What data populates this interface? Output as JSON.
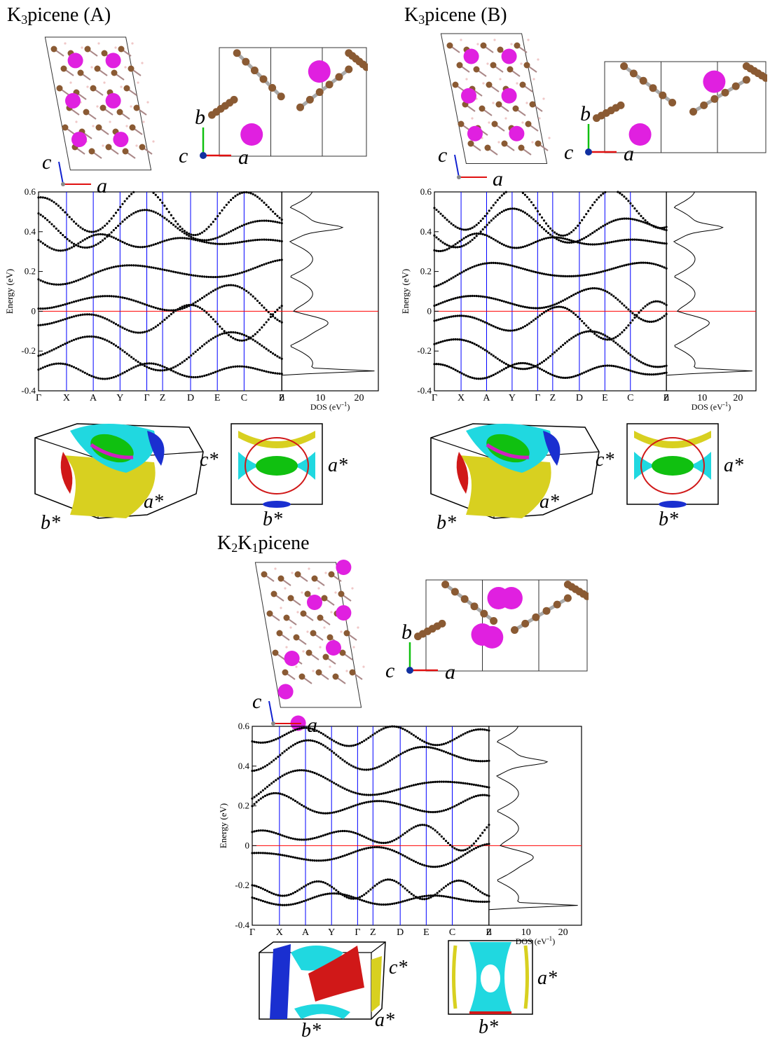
{
  "panels": [
    {
      "title": {
        "prefix": "K",
        "sub": "3",
        "rest": "picene (A)"
      },
      "axes_left": [
        "c",
        "a"
      ],
      "axes_right": [
        "b",
        "c",
        "a"
      ],
      "bz_left": [
        "c*",
        "b*",
        "a*"
      ],
      "bz_right": [
        "a*",
        "b*"
      ],
      "kpath": [
        "Γ",
        "X",
        "A",
        "Y",
        "Γ",
        "Z",
        "D",
        "E",
        "C",
        "Z"
      ],
      "energy_label": "Energy (eV)",
      "dos_label": "DOS (eV",
      "dos_sup": "-1",
      "dos_unit_close": ")",
      "y_ticks": [
        "0.6",
        "0.4",
        "0.2",
        "0",
        "-0.2",
        "-0.4"
      ],
      "dos_ticks": [
        "0",
        "10",
        "20"
      ]
    },
    {
      "title": {
        "prefix": "K",
        "sub": "3",
        "rest": "picene (B)"
      },
      "axes_left": [
        "c",
        "a"
      ],
      "axes_right": [
        "b",
        "c",
        "a"
      ],
      "bz_left": [
        "c*",
        "b*",
        "a*"
      ],
      "bz_right": [
        "a*",
        "b*"
      ],
      "kpath": [
        "Γ",
        "X",
        "A",
        "Y",
        "Γ",
        "Z",
        "D",
        "E",
        "C",
        "Z"
      ],
      "energy_label": "Energy (eV)",
      "dos_label": "DOS (eV",
      "dos_sup": "-1",
      "dos_unit_close": ")",
      "y_ticks": [
        "0.6",
        "0.4",
        "0.2",
        "0",
        "-0.2",
        "-0.4"
      ],
      "dos_ticks": [
        "0",
        "10",
        "20"
      ]
    },
    {
      "title": {
        "prefix": "K",
        "sub": "2",
        "mid": "K",
        "sub2": "1",
        "rest": "picene"
      },
      "axes_left": [
        "c",
        "a"
      ],
      "axes_right": [
        "b",
        "c",
        "a"
      ],
      "bz_left": [
        "c*",
        "b*",
        "a*"
      ],
      "bz_right": [
        "a*",
        "b*"
      ],
      "kpath": [
        "Γ",
        "X",
        "A",
        "Y",
        "Γ",
        "Z",
        "D",
        "E",
        "C",
        "Z"
      ],
      "energy_label": "Energy (eV)",
      "dos_label": "DOS (eV",
      "dos_sup": "-1",
      "dos_unit_close": ")",
      "y_ticks": [
        "0.6",
        "0.4",
        "0.2",
        "0",
        "-0.2",
        "-0.4"
      ],
      "dos_ticks": [
        "0",
        "10",
        "20"
      ]
    }
  ],
  "colors": {
    "carbon": "#8a5a33",
    "potassium": "#e020e0",
    "hydrogen": "#f0c8c8",
    "band": "#000000",
    "kline": "#0000ff",
    "fermi": "#ff0000",
    "fs_cyan": "#20d8e0",
    "fs_red": "#d01818",
    "fs_blue": "#1a2fd0",
    "fs_yellow": "#d8d020",
    "fs_green": "#10c010",
    "fs_magenta": "#d020c0"
  }
}
